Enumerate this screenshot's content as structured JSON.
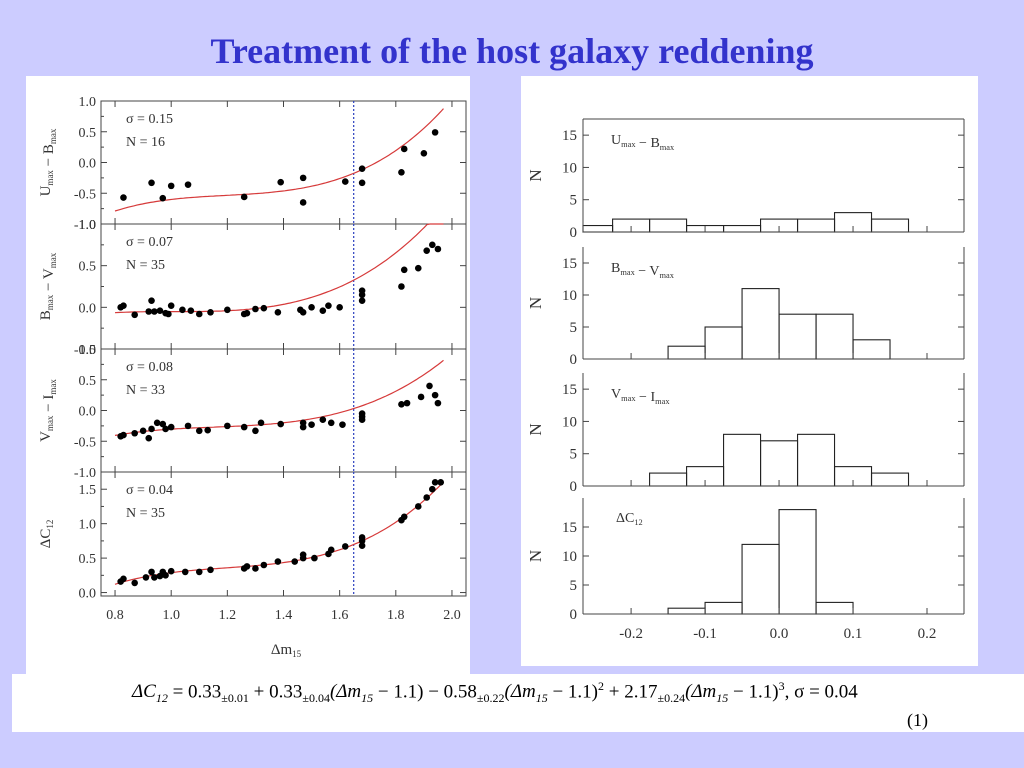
{
  "title": "Treatment of the host galaxy reddening",
  "equation": {
    "lhs": "ΔC",
    "lhs_sub": "12",
    "eq_sign": " = ",
    "c0": "0.33",
    "c0_err": "±0.01",
    "plus1": " + ",
    "c1": "0.33",
    "c1_err": "±0.04",
    "t1": "(Δm",
    "t1_sub": "15",
    "t1_end": " − 1.1) − ",
    "c2": "0.58",
    "c2_err": "±0.22",
    "t2": "(Δm",
    "t2_sub": "15",
    "t2_end": " − 1.1)",
    "t2_pow": "2",
    "plus2": " + ",
    "c3": "2.17",
    "c3_err": "±0.24",
    "t3": "(Δm",
    "t3_sub": "15",
    "t3_end": " − 1.1)",
    "t3_pow": "3",
    "sigma": ", σ = 0.04",
    "number": "(1)"
  },
  "chart_data": [
    {
      "type": "scatter",
      "panel": "left",
      "xlabel": "Δm",
      "xlabel_sub": "15",
      "xlim": [
        0.75,
        2.05
      ],
      "x_ticks": [
        0.8,
        1.0,
        1.2,
        1.4,
        1.6,
        1.8,
        2.0
      ],
      "x_tick_labels": [
        "0.8",
        "1.0",
        "1.2",
        "1.4",
        "1.6",
        "1.8",
        "2.0"
      ],
      "cut_line_x": 1.65,
      "subplots": [
        {
          "ylabel": "U",
          "ylabel_sub": "max",
          "ylabel_mid": " − B",
          "ylabel_sub2": "max",
          "ylim": [
            -1.0,
            1.0
          ],
          "y_ticks": [
            1.0,
            0.5,
            0.0,
            -0.5,
            -1.0
          ],
          "y_tick_labels": [
            "1.0",
            "0.5",
            "0.0",
            "-0.5",
            "-1.0"
          ],
          "sigma_label": "σ = 0.15",
          "n_label": "N = 16",
          "fit": [
            -0.56,
            0.31,
            -0.73,
            2.61
          ],
          "points": [
            [
              0.83,
              -0.57
            ],
            [
              0.93,
              -0.33
            ],
            [
              0.97,
              -0.58
            ],
            [
              1.0,
              -0.38
            ],
            [
              1.06,
              -0.36
            ],
            [
              1.26,
              -0.56
            ],
            [
              1.39,
              -0.32
            ],
            [
              1.47,
              -0.25
            ],
            [
              1.47,
              -0.65
            ],
            [
              1.62,
              -0.31
            ],
            [
              1.68,
              -0.33
            ],
            [
              1.68,
              -0.1
            ],
            [
              1.82,
              -0.16
            ],
            [
              1.83,
              0.22
            ],
            [
              1.9,
              0.15
            ],
            [
              1.94,
              0.49
            ]
          ]
        },
        {
          "ylabel": "B",
          "ylabel_sub": "max",
          "ylabel_mid": " − V",
          "ylabel_sub2": "max",
          "ylim": [
            -0.5,
            1.0
          ],
          "y_ticks": [
            1.0,
            0.5,
            0.0,
            -0.5
          ],
          "y_tick_labels": [
            "1.0",
            "0.5",
            "0.0",
            "-0.5"
          ],
          "sigma_label": "σ = 0.07",
          "n_label": "N = 35",
          "fit": [
            -0.05,
            0.04,
            0.4,
            1.4
          ],
          "points": [
            [
              0.82,
              0.0
            ],
            [
              0.83,
              0.02
            ],
            [
              0.87,
              -0.09
            ],
            [
              0.92,
              -0.05
            ],
            [
              0.93,
              0.08
            ],
            [
              0.94,
              -0.05
            ],
            [
              0.96,
              -0.04
            ],
            [
              0.98,
              -0.07
            ],
            [
              0.99,
              -0.08
            ],
            [
              1.0,
              0.02
            ],
            [
              1.04,
              -0.03
            ],
            [
              1.07,
              -0.04
            ],
            [
              1.1,
              -0.08
            ],
            [
              1.14,
              -0.06
            ],
            [
              1.2,
              -0.03
            ],
            [
              1.26,
              -0.08
            ],
            [
              1.27,
              -0.07
            ],
            [
              1.3,
              -0.02
            ],
            [
              1.33,
              -0.01
            ],
            [
              1.38,
              -0.06
            ],
            [
              1.46,
              -0.03
            ],
            [
              1.47,
              -0.06
            ],
            [
              1.5,
              0.0
            ],
            [
              1.54,
              -0.04
            ],
            [
              1.56,
              0.02
            ],
            [
              1.6,
              0.0
            ],
            [
              1.68,
              0.08
            ],
            [
              1.68,
              0.15
            ],
            [
              1.68,
              0.2
            ],
            [
              1.82,
              0.25
            ],
            [
              1.83,
              0.45
            ],
            [
              1.88,
              0.47
            ],
            [
              1.91,
              0.68
            ],
            [
              1.93,
              0.75
            ],
            [
              1.95,
              0.7
            ]
          ]
        },
        {
          "ylabel": "V",
          "ylabel_sub": "max",
          "ylabel_mid": " − I",
          "ylabel_sub2": "max",
          "ylim": [
            -1.0,
            1.0
          ],
          "y_ticks": [
            1.0,
            0.5,
            0.0,
            -0.5,
            -1.0
          ],
          "y_tick_labels": [
            "1.0",
            "0.5",
            "0.0",
            "-0.5",
            "-1.0"
          ],
          "sigma_label": "σ = 0.08",
          "n_label": "N = 33",
          "fit": [
            -0.28,
            0.19,
            -0.25,
            1.7
          ],
          "points": [
            [
              0.82,
              -0.42
            ],
            [
              0.83,
              -0.4
            ],
            [
              0.87,
              -0.37
            ],
            [
              0.9,
              -0.33
            ],
            [
              0.92,
              -0.45
            ],
            [
              0.93,
              -0.3
            ],
            [
              0.95,
              -0.2
            ],
            [
              0.97,
              -0.22
            ],
            [
              0.98,
              -0.3
            ],
            [
              1.0,
              -0.27
            ],
            [
              1.06,
              -0.25
            ],
            [
              1.1,
              -0.33
            ],
            [
              1.13,
              -0.32
            ],
            [
              1.2,
              -0.25
            ],
            [
              1.26,
              -0.27
            ],
            [
              1.3,
              -0.33
            ],
            [
              1.32,
              -0.2
            ],
            [
              1.39,
              -0.22
            ],
            [
              1.47,
              -0.27
            ],
            [
              1.47,
              -0.2
            ],
            [
              1.5,
              -0.23
            ],
            [
              1.54,
              -0.15
            ],
            [
              1.57,
              -0.2
            ],
            [
              1.61,
              -0.23
            ],
            [
              1.68,
              -0.1
            ],
            [
              1.68,
              -0.05
            ],
            [
              1.68,
              -0.15
            ],
            [
              1.82,
              0.1
            ],
            [
              1.84,
              0.12
            ],
            [
              1.89,
              0.22
            ],
            [
              1.92,
              0.4
            ],
            [
              1.94,
              0.25
            ],
            [
              1.95,
              0.12
            ]
          ]
        },
        {
          "ylabel": "ΔC",
          "ylabel_sub": "12",
          "ylabel_mid": "",
          "ylabel_sub2": "",
          "ylim": [
            -0.05,
            1.75
          ],
          "y_ticks": [
            1.5,
            1.0,
            0.5,
            0.0
          ],
          "y_tick_labels": [
            "1.5",
            "1.0",
            "0.5",
            "0.0"
          ],
          "sigma_label": "σ = 0.04",
          "n_label": "N = 35",
          "fit": [
            0.33,
            0.33,
            -0.58,
            2.17
          ],
          "points": [
            [
              0.82,
              0.16
            ],
            [
              0.83,
              0.2
            ],
            [
              0.87,
              0.14
            ],
            [
              0.91,
              0.22
            ],
            [
              0.93,
              0.3
            ],
            [
              0.94,
              0.22
            ],
            [
              0.96,
              0.24
            ],
            [
              0.97,
              0.3
            ],
            [
              0.98,
              0.25
            ],
            [
              1.0,
              0.31
            ],
            [
              1.05,
              0.3
            ],
            [
              1.1,
              0.3
            ],
            [
              1.14,
              0.33
            ],
            [
              1.26,
              0.35
            ],
            [
              1.27,
              0.38
            ],
            [
              1.3,
              0.35
            ],
            [
              1.33,
              0.4
            ],
            [
              1.38,
              0.45
            ],
            [
              1.44,
              0.45
            ],
            [
              1.47,
              0.5
            ],
            [
              1.47,
              0.55
            ],
            [
              1.51,
              0.5
            ],
            [
              1.56,
              0.56
            ],
            [
              1.57,
              0.62
            ],
            [
              1.62,
              0.67
            ],
            [
              1.68,
              0.68
            ],
            [
              1.68,
              0.75
            ],
            [
              1.68,
              0.8
            ],
            [
              1.82,
              1.05
            ],
            [
              1.83,
              1.1
            ],
            [
              1.88,
              1.25
            ],
            [
              1.91,
              1.38
            ],
            [
              1.93,
              1.5
            ],
            [
              1.94,
              1.6
            ],
            [
              1.96,
              1.6
            ]
          ]
        }
      ]
    },
    {
      "type": "bar",
      "panel": "right",
      "xlim": [
        -0.265,
        0.25
      ],
      "bin_width": 0.05,
      "x_ticks": [
        -0.2,
        -0.1,
        0.0,
        0.1,
        0.2
      ],
      "x_tick_labels": [
        "-0.2",
        "-0.1",
        "0.0",
        "0.1",
        "0.2"
      ],
      "ylabel": "N",
      "subplots": [
        {
          "label": "U",
          "label_sub": "max",
          "label_mid": " − B",
          "label_sub2": "max",
          "ylim": [
            0,
            17.5
          ],
          "y_ticks": [
            0,
            5,
            10,
            15
          ],
          "y_tick_labels": [
            "0",
            "5",
            "10",
            "15"
          ],
          "bins": [
            [
              -0.275,
              1
            ],
            [
              -0.225,
              2
            ],
            [
              -0.175,
              2
            ],
            [
              -0.125,
              1
            ],
            [
              -0.075,
              1
            ],
            [
              -0.025,
              2
            ],
            [
              0.025,
              2
            ],
            [
              0.075,
              3
            ],
            [
              0.125,
              2
            ]
          ]
        },
        {
          "label": "B",
          "label_sub": "max",
          "label_mid": " − V",
          "label_sub2": "max",
          "ylim": [
            0,
            17.5
          ],
          "y_ticks": [
            0,
            5,
            10,
            15
          ],
          "y_tick_labels": [
            "0",
            "5",
            "10",
            "15"
          ],
          "bins": [
            [
              -0.15,
              2
            ],
            [
              -0.1,
              5
            ],
            [
              -0.05,
              11
            ],
            [
              0.0,
              7
            ],
            [
              0.05,
              7
            ],
            [
              0.1,
              3
            ]
          ]
        },
        {
          "label": "V",
          "label_sub": "max",
          "label_mid": " − I",
          "label_sub2": "max",
          "ylim": [
            0,
            17.5
          ],
          "y_ticks": [
            0,
            5,
            10,
            15
          ],
          "y_tick_labels": [
            "0",
            "5",
            "10",
            "15"
          ],
          "bins": [
            [
              -0.175,
              2
            ],
            [
              -0.125,
              3
            ],
            [
              -0.075,
              8
            ],
            [
              -0.025,
              7
            ],
            [
              0.025,
              8
            ],
            [
              0.075,
              3
            ],
            [
              0.125,
              2
            ]
          ]
        },
        {
          "label": "ΔC",
          "label_sub": "12",
          "label_mid": "",
          "label_sub2": "",
          "ylim": [
            0,
            20
          ],
          "y_ticks": [
            0,
            5,
            10,
            15
          ],
          "y_tick_labels": [
            "0",
            "5",
            "10",
            "15"
          ],
          "bins": [
            [
              -0.15,
              1
            ],
            [
              -0.1,
              2
            ],
            [
              -0.05,
              12
            ],
            [
              0.0,
              18
            ],
            [
              0.05,
              2
            ]
          ]
        }
      ]
    }
  ]
}
